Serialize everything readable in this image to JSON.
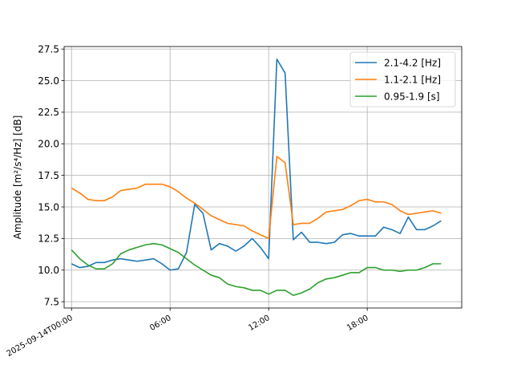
{
  "chart_data": {
    "type": "line",
    "xlabel": "",
    "ylabel": "Amplitude [m²/s⁴/Hz] [dB]",
    "ylim": [
      7.0,
      27.7
    ],
    "xlim_hours": [
      -0.45,
      23.75
    ],
    "y_ticks": [
      7.5,
      10.0,
      12.5,
      15.0,
      17.5,
      20.0,
      22.5,
      25.0,
      27.5
    ],
    "y_tick_labels": [
      "7.5",
      "10.0",
      "12.5",
      "15.0",
      "17.5",
      "20.0",
      "22.5",
      "25.0",
      "27.5"
    ],
    "x_ticks_hours": [
      0,
      6,
      12,
      18
    ],
    "x_tick_labels": [
      "2025-09-14T00:00",
      "06:00",
      "12:00",
      "18:00"
    ],
    "grid": true,
    "legend_position": "top-right",
    "x_hours": [
      0,
      0.5,
      1,
      1.5,
      2,
      2.5,
      3,
      3.5,
      4,
      4.5,
      5,
      5.5,
      6,
      6.5,
      7,
      7.5,
      8,
      8.5,
      9,
      9.5,
      10,
      10.5,
      11,
      11.5,
      12,
      12.5,
      13,
      13.5,
      14,
      14.5,
      15,
      15.5,
      16,
      16.5,
      17,
      17.5,
      18,
      18.5,
      19,
      19.5,
      20,
      20.5,
      21,
      21.5,
      22,
      22.5,
      23
    ],
    "series": [
      {
        "name": "2.1-4.2 [Hz]",
        "color": "#1f77b4",
        "values": [
          10.5,
          10.2,
          10.3,
          10.6,
          10.6,
          10.8,
          10.9,
          10.8,
          10.7,
          10.8,
          10.9,
          10.5,
          10.0,
          10.1,
          11.4,
          15.2,
          14.5,
          11.6,
          12.1,
          11.9,
          11.5,
          11.9,
          12.5,
          11.8,
          10.9,
          26.7,
          25.6,
          12.4,
          13.0,
          12.2,
          12.2,
          12.1,
          12.2,
          12.8,
          12.9,
          12.7,
          12.7,
          12.7,
          13.4,
          13.2,
          12.9,
          14.2,
          13.2,
          13.2,
          13.5,
          13.9,
          null
        ]
      },
      {
        "name": "1.1-2.1 [Hz]",
        "color": "#ff7f0e",
        "values": [
          16.5,
          16.1,
          15.6,
          15.5,
          15.5,
          15.8,
          16.3,
          16.4,
          16.5,
          16.8,
          16.8,
          16.8,
          16.6,
          16.2,
          15.7,
          15.3,
          14.8,
          14.3,
          14.0,
          13.7,
          13.6,
          13.5,
          13.1,
          12.8,
          12.5,
          19.0,
          18.5,
          13.6,
          13.7,
          13.7,
          14.1,
          14.6,
          14.7,
          14.8,
          15.1,
          15.5,
          15.6,
          15.4,
          15.4,
          15.2,
          14.7,
          14.4,
          14.5,
          14.6,
          14.7,
          14.5,
          null
        ]
      },
      {
        "name": "0.95-1.9 [s]",
        "color": "#2ca02c",
        "values": [
          11.6,
          10.9,
          10.4,
          10.1,
          10.1,
          10.5,
          11.3,
          11.6,
          11.8,
          12.0,
          12.1,
          12.0,
          11.7,
          11.4,
          10.9,
          10.4,
          10.0,
          9.6,
          9.4,
          8.9,
          8.7,
          8.6,
          8.4,
          8.4,
          8.1,
          8.4,
          8.4,
          8.0,
          8.2,
          8.5,
          9.0,
          9.3,
          9.4,
          9.6,
          9.8,
          9.8,
          10.2,
          10.2,
          10.0,
          10.0,
          9.9,
          10.0,
          10.0,
          10.2,
          10.5,
          10.5,
          null
        ]
      }
    ]
  }
}
